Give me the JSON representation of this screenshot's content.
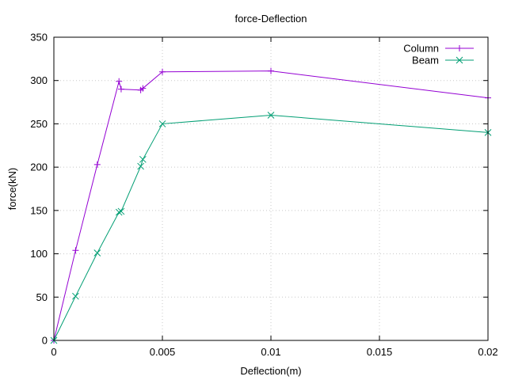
{
  "chart_data": {
    "type": "line",
    "title": "force-Deflection",
    "xlabel": "Deflection(m)",
    "ylabel": "force(kN)",
    "xlim": [
      0,
      0.02
    ],
    "ylim": [
      0,
      350
    ],
    "xticks": [
      0,
      0.005,
      0.01,
      0.015,
      0.02
    ],
    "xtick_labels": [
      "0",
      "0.005",
      "0.01",
      "0.015",
      "0.02"
    ],
    "yticks": [
      0,
      50,
      100,
      150,
      200,
      250,
      300,
      350
    ],
    "ytick_labels": [
      "0",
      "50",
      "100",
      "150",
      "200",
      "250",
      "300",
      "350"
    ],
    "grid": true,
    "legend_position": "top-right",
    "series": [
      {
        "name": "Column",
        "color": "#9400d3",
        "marker": "plus",
        "x": [
          0,
          0.001,
          0.002,
          0.003,
          0.0031,
          0.004,
          0.0041,
          0.005,
          0.01,
          0.02
        ],
        "y": [
          0,
          104,
          203,
          299,
          290,
          289,
          291,
          310,
          311,
          280
        ]
      },
      {
        "name": "Beam",
        "color": "#009e73",
        "marker": "cross",
        "x": [
          0,
          0.001,
          0.002,
          0.003,
          0.0031,
          0.004,
          0.0041,
          0.005,
          0.01,
          0.02
        ],
        "y": [
          0,
          51,
          101,
          148,
          149,
          201,
          209,
          250,
          260,
          240
        ]
      }
    ]
  }
}
